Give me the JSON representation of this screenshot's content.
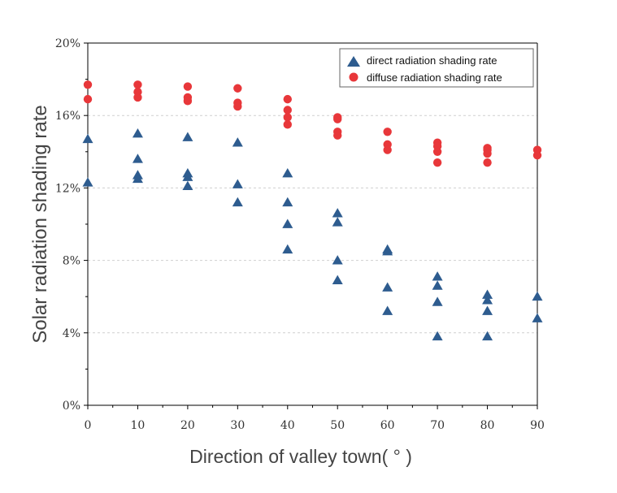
{
  "chart_data": {
    "type": "scatter",
    "xlabel": "Direction of valley town( ° )",
    "ylabel": "Solar radiation shading rate",
    "xlim": [
      0,
      90
    ],
    "ylim": [
      0,
      20
    ],
    "xticks": [
      "0",
      "10",
      "20",
      "30",
      "40",
      "50",
      "60",
      "70",
      "80",
      "90"
    ],
    "yticks": [
      "0%",
      "4%",
      "8%",
      "12%",
      "16%",
      "20%"
    ],
    "grid": "horizontal dashed",
    "legend_position": "top-right",
    "series": [
      {
        "name": "direct radiation shading rate",
        "marker": "triangle",
        "color": "#2e5c8f",
        "points": [
          [
            0,
            14.7
          ],
          [
            0,
            12.3
          ],
          [
            10,
            15.0
          ],
          [
            10,
            13.6
          ],
          [
            10,
            12.7
          ],
          [
            10,
            12.5
          ],
          [
            20,
            14.8
          ],
          [
            20,
            12.8
          ],
          [
            20,
            12.6
          ],
          [
            20,
            12.1
          ],
          [
            30,
            14.5
          ],
          [
            30,
            12.2
          ],
          [
            30,
            11.2
          ],
          [
            40,
            12.8
          ],
          [
            40,
            11.2
          ],
          [
            40,
            10.0
          ],
          [
            40,
            8.6
          ],
          [
            50,
            10.6
          ],
          [
            50,
            10.1
          ],
          [
            50,
            8.0
          ],
          [
            50,
            6.9
          ],
          [
            60,
            8.6
          ],
          [
            60,
            8.5
          ],
          [
            60,
            6.5
          ],
          [
            60,
            5.2
          ],
          [
            70,
            7.1
          ],
          [
            70,
            6.6
          ],
          [
            70,
            5.7
          ],
          [
            70,
            3.8
          ],
          [
            80,
            6.1
          ],
          [
            80,
            5.8
          ],
          [
            80,
            5.2
          ],
          [
            80,
            3.8
          ],
          [
            90,
            6.0
          ],
          [
            90,
            4.8
          ]
        ]
      },
      {
        "name": "diffuse radiation shading rate",
        "marker": "circle",
        "color": "#e8373a",
        "points": [
          [
            0,
            17.7
          ],
          [
            0,
            16.9
          ],
          [
            10,
            17.7
          ],
          [
            10,
            17.3
          ],
          [
            10,
            17.0
          ],
          [
            20,
            17.6
          ],
          [
            20,
            17.0
          ],
          [
            20,
            16.8
          ],
          [
            30,
            17.5
          ],
          [
            30,
            16.7
          ],
          [
            30,
            16.5
          ],
          [
            40,
            16.9
          ],
          [
            40,
            16.3
          ],
          [
            40,
            15.9
          ],
          [
            40,
            15.5
          ],
          [
            50,
            15.9
          ],
          [
            50,
            15.8
          ],
          [
            50,
            15.1
          ],
          [
            50,
            14.9
          ],
          [
            60,
            15.1
          ],
          [
            60,
            14.4
          ],
          [
            60,
            14.1
          ],
          [
            70,
            14.5
          ],
          [
            70,
            14.3
          ],
          [
            70,
            14.0
          ],
          [
            70,
            13.4
          ],
          [
            80,
            14.2
          ],
          [
            80,
            14.1
          ],
          [
            80,
            13.9
          ],
          [
            80,
            13.4
          ],
          [
            90,
            14.1
          ],
          [
            90,
            13.8
          ]
        ]
      }
    ]
  }
}
